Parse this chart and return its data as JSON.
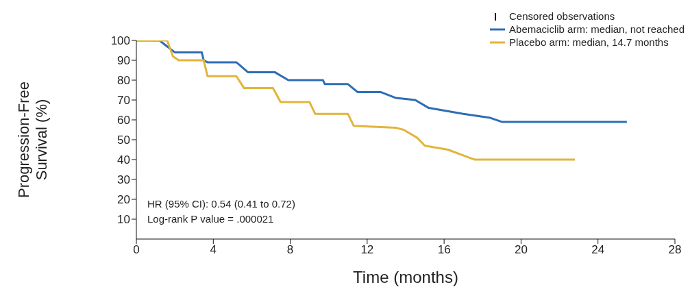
{
  "chart_data": {
    "type": "line",
    "xlabel": "Time (months)",
    "ylabel": "Progression-Free Survival (%)",
    "xlim": [
      0,
      28
    ],
    "xticks": [
      0,
      4,
      8,
      12,
      16,
      20,
      24,
      28
    ],
    "ylim": [
      0,
      100
    ],
    "yticks": [
      10,
      20,
      30,
      40,
      50,
      60,
      70,
      80,
      90,
      100
    ],
    "legend": "top right",
    "marker": "none",
    "line_style": "solid",
    "series": [
      {
        "name": "Abemaciclib arm: median, not reached",
        "color": "#2e6db4",
        "x": [
          0,
          1.2,
          1.6,
          2.0,
          3.4,
          3.5,
          3.7,
          5.2,
          5.8,
          7.2,
          7.9,
          9.7,
          9.8,
          11.0,
          11.5,
          12.7,
          13.5,
          14.5,
          15.2,
          17.0,
          18.4,
          19.0,
          25.5
        ],
        "values": [
          100,
          100,
          97,
          94,
          94,
          90,
          89,
          89,
          84,
          84,
          80,
          80,
          78,
          78,
          74,
          74,
          71,
          70,
          66,
          63,
          61,
          59,
          59
        ]
      },
      {
        "name": "Placebo arm: median, 14.7 months",
        "color": "#e3b43c",
        "x": [
          0,
          1.6,
          1.9,
          2.2,
          3.5,
          3.6,
          3.7,
          5.2,
          5.6,
          7.1,
          7.5,
          9.0,
          9.3,
          11.0,
          11.3,
          13.5,
          13.9,
          14.6,
          15.0,
          16.2,
          17.3,
          17.6,
          22.8
        ],
        "values": [
          100,
          100,
          92,
          90,
          90,
          86,
          82,
          82,
          76,
          76,
          69,
          69,
          63,
          63,
          57,
          56,
          55,
          51,
          47,
          45,
          41,
          40,
          40
        ]
      }
    ],
    "annotations": [
      "Censored observations",
      "HR (95% CI): 0.54 (0.41 to 0.72)",
      "Log-rank P value = .000021"
    ]
  }
}
